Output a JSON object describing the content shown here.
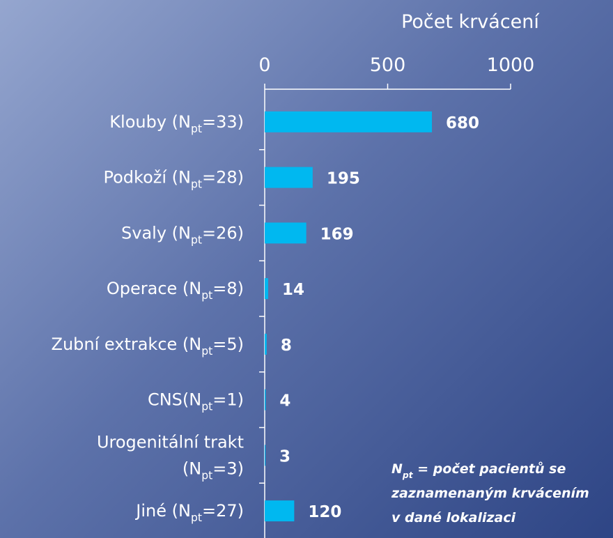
{
  "chart_data": {
    "type": "bar",
    "orientation": "horizontal",
    "x_axis_label": "Počet krvácení",
    "categories": [
      [
        [
          "Klouby (N",
          "pt",
          "=33)"
        ]
      ],
      [
        [
          "Podkoží (N",
          "pt",
          "=28)"
        ]
      ],
      [
        [
          "Svaly (N",
          "pt",
          "=26)"
        ]
      ],
      [
        [
          "Operace (N",
          "pt",
          "=8)"
        ]
      ],
      [
        [
          "Zubní extrakce (N",
          "pt",
          "=5)"
        ]
      ],
      [
        [
          "CNS(N",
          "pt",
          "=1)"
        ]
      ],
      [
        [
          "Urogenitální trakt"
        ],
        [
          "(N",
          "pt",
          "=3)"
        ]
      ],
      [
        [
          "Jiné (N",
          "pt",
          "=27)"
        ]
      ]
    ],
    "values": [
      680,
      195,
      169,
      14,
      8,
      4,
      3,
      120
    ],
    "color": "#00b8f0",
    "xlim": [
      0,
      1000
    ],
    "xticks": [
      0,
      500,
      1000
    ],
    "annotation": [
      [
        "N",
        "pt",
        " = počet pacientů se"
      ],
      [
        "zaznamenaným krvácením"
      ],
      [
        "v dané lokalizaci"
      ]
    ]
  }
}
